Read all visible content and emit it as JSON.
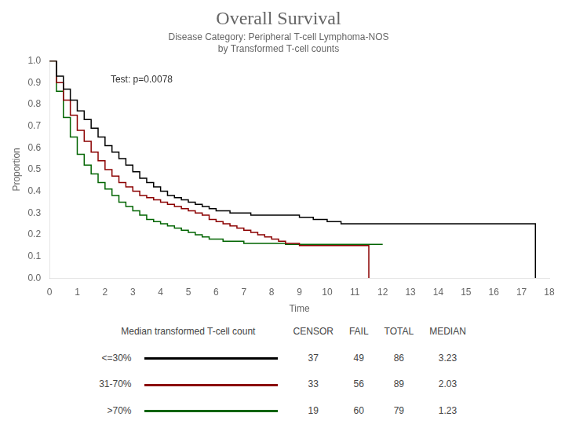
{
  "chart_data": {
    "type": "step",
    "title": "Overall Survival",
    "subtitle": [
      "Disease Category: Peripheral T-cell Lymphoma-NOS",
      "by Transformed T-cell counts"
    ],
    "xlabel": "Time",
    "ylabel": "Proportion",
    "annotations": [
      {
        "text": "Test: p=0.0078",
        "x": 2.2,
        "y": 0.89
      }
    ],
    "xlim": [
      0,
      18
    ],
    "ylim": [
      0,
      1
    ],
    "xticks": [
      0,
      1,
      2,
      3,
      4,
      5,
      6,
      7,
      8,
      9,
      10,
      11,
      12,
      13,
      14,
      15,
      16,
      17,
      18
    ],
    "yticks": [
      {
        "value": 0,
        "label": "0.0"
      },
      0.1,
      0.2,
      0.3,
      0.4,
      0.5,
      0.6,
      0.7,
      0.8,
      0.9,
      {
        "value": 1,
        "label": "1.0"
      }
    ],
    "grid": false,
    "series": [
      {
        "name": "<=30%",
        "color": "#000000",
        "x": [
          0,
          0.25,
          0.5,
          0.75,
          1.0,
          1.25,
          1.5,
          1.75,
          2.0,
          2.25,
          2.5,
          2.75,
          3.0,
          3.25,
          3.5,
          3.75,
          4.0,
          4.25,
          4.5,
          4.75,
          5.0,
          5.25,
          5.5,
          5.75,
          6.0,
          6.25,
          6.5,
          6.75,
          7.0,
          7.25,
          7.5,
          7.75,
          8.0,
          8.5,
          9.0,
          9.5,
          10.0,
          10.5,
          11.0,
          17.0,
          17.5
        ],
        "values": [
          1.0,
          0.93,
          0.87,
          0.82,
          0.77,
          0.73,
          0.69,
          0.65,
          0.61,
          0.58,
          0.55,
          0.52,
          0.49,
          0.46,
          0.44,
          0.42,
          0.4,
          0.38,
          0.37,
          0.36,
          0.35,
          0.34,
          0.33,
          0.32,
          0.31,
          0.31,
          0.3,
          0.3,
          0.3,
          0.29,
          0.29,
          0.29,
          0.29,
          0.29,
          0.28,
          0.27,
          0.26,
          0.25,
          0.25,
          0.25,
          0.0
        ]
      },
      {
        "name": "31-70%",
        "color": "#8B0000",
        "x": [
          0,
          0.25,
          0.5,
          0.75,
          1.0,
          1.25,
          1.5,
          1.75,
          2.0,
          2.25,
          2.5,
          2.75,
          3.0,
          3.25,
          3.5,
          3.75,
          4.0,
          4.25,
          4.5,
          4.75,
          5.0,
          5.25,
          5.5,
          5.75,
          6.0,
          6.25,
          6.5,
          6.75,
          7.0,
          7.25,
          7.5,
          7.75,
          8.0,
          8.25,
          8.5,
          9.0,
          10.0,
          10.5,
          11.0,
          11.5
        ],
        "values": [
          1.0,
          0.9,
          0.82,
          0.75,
          0.68,
          0.63,
          0.58,
          0.54,
          0.5,
          0.47,
          0.44,
          0.42,
          0.4,
          0.38,
          0.37,
          0.36,
          0.35,
          0.34,
          0.33,
          0.32,
          0.31,
          0.3,
          0.29,
          0.27,
          0.26,
          0.25,
          0.24,
          0.23,
          0.22,
          0.21,
          0.2,
          0.19,
          0.18,
          0.17,
          0.16,
          0.15,
          0.15,
          0.15,
          0.15,
          0.0
        ]
      },
      {
        "name": ">70%",
        "color": "#006400",
        "x": [
          0,
          0.25,
          0.5,
          0.75,
          1.0,
          1.25,
          1.5,
          1.75,
          2.0,
          2.25,
          2.5,
          2.75,
          3.0,
          3.25,
          3.5,
          3.75,
          4.0,
          4.25,
          4.5,
          4.75,
          5.0,
          5.25,
          5.5,
          5.75,
          6.0,
          6.25,
          6.5,
          6.75,
          7.0,
          7.25,
          7.5,
          7.75,
          8.0,
          8.25,
          8.5,
          9.0,
          9.5,
          10.0,
          10.5,
          11.0,
          12.0
        ],
        "values": [
          1.0,
          0.86,
          0.74,
          0.65,
          0.57,
          0.52,
          0.48,
          0.44,
          0.41,
          0.38,
          0.35,
          0.33,
          0.31,
          0.29,
          0.27,
          0.26,
          0.25,
          0.24,
          0.23,
          0.22,
          0.21,
          0.2,
          0.19,
          0.18,
          0.18,
          0.17,
          0.17,
          0.17,
          0.16,
          0.16,
          0.16,
          0.16,
          0.16,
          0.16,
          0.155,
          0.155,
          0.155,
          0.155,
          0.155,
          0.155,
          0.155
        ]
      }
    ],
    "table": {
      "title": "Median transformed T-cell count",
      "columns": [
        "CENSOR",
        "FAIL",
        "TOTAL",
        "MEDIAN"
      ],
      "rows": [
        [
          37,
          49,
          86,
          3.23
        ],
        [
          33,
          56,
          89,
          2.03
        ],
        [
          19,
          60,
          79,
          1.23
        ]
      ]
    }
  }
}
